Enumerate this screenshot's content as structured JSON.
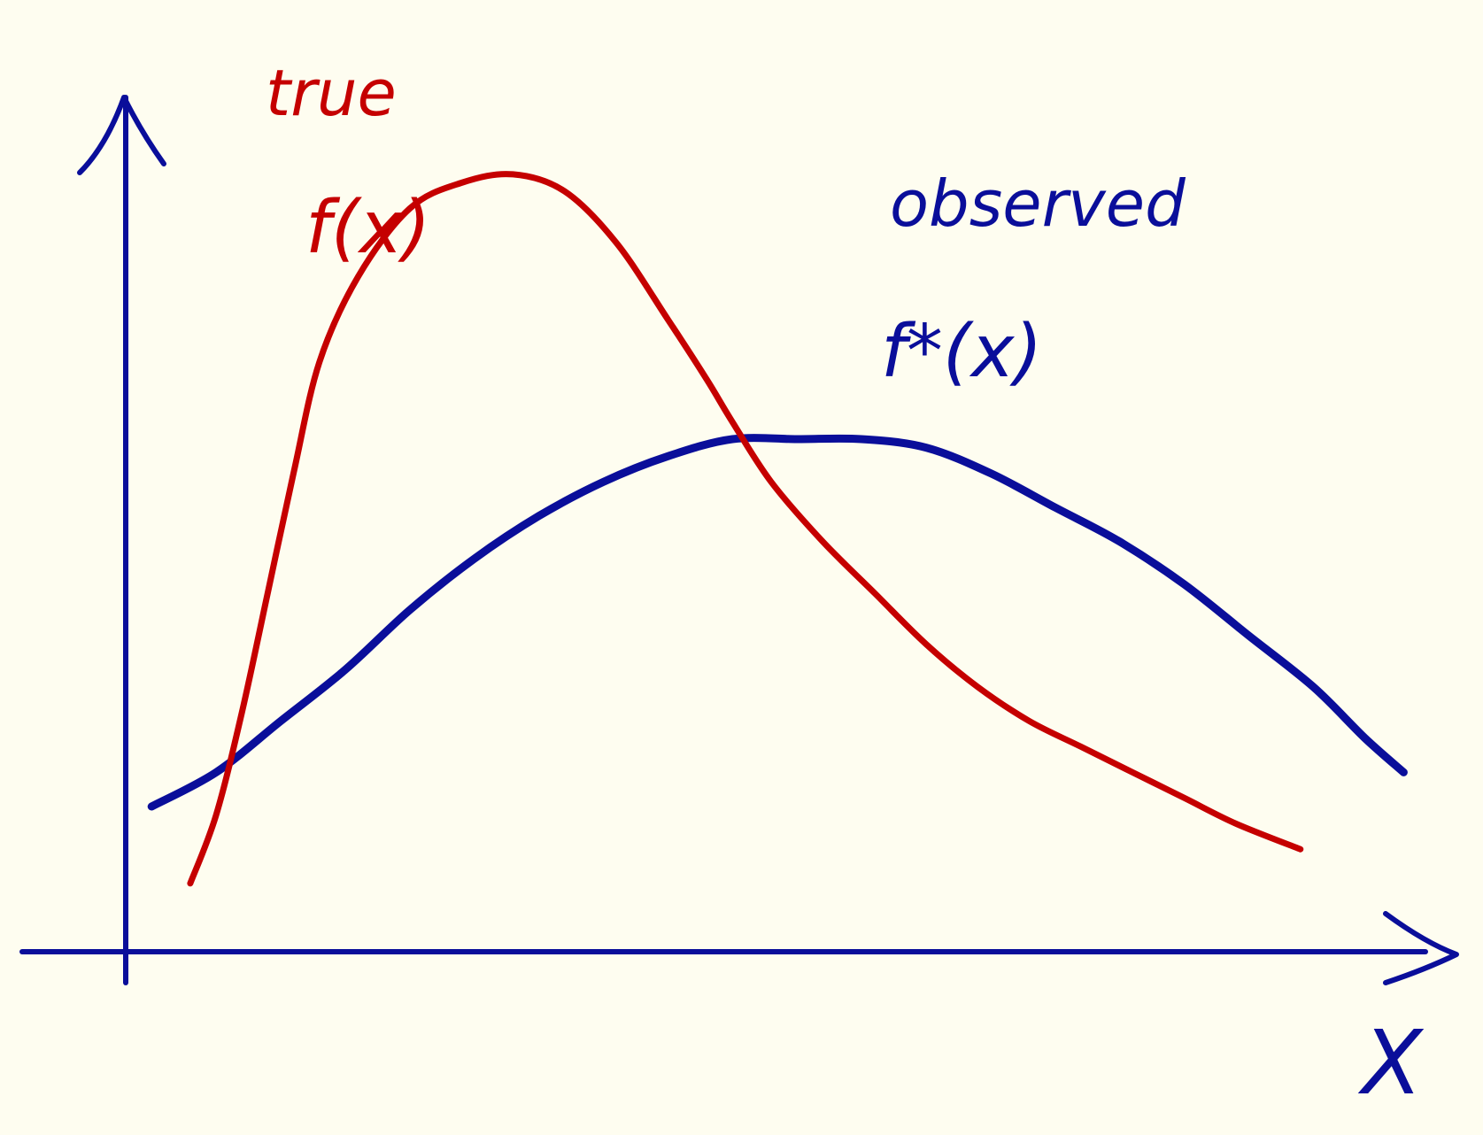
{
  "colors": {
    "background": "#fefdf0",
    "true_curve": "#c50000",
    "observed_curve": "#0a0e9a",
    "axes": "#0a0e9a"
  },
  "labels": {
    "true_word": "true",
    "true_func": "f(x)",
    "observed_word": "observed",
    "observed_func": "f*(x)",
    "x_axis": "X"
  },
  "chart_data": {
    "type": "line",
    "series": [
      {
        "name": "true f(x)",
        "color": "#c50000",
        "points": [
          [
            0.05,
            0.08
          ],
          [
            0.07,
            0.16
          ],
          [
            0.09,
            0.28
          ],
          [
            0.11,
            0.42
          ],
          [
            0.13,
            0.56
          ],
          [
            0.15,
            0.69
          ],
          [
            0.18,
            0.79
          ],
          [
            0.22,
            0.87
          ],
          [
            0.26,
            0.9
          ],
          [
            0.3,
            0.91
          ],
          [
            0.34,
            0.89
          ],
          [
            0.38,
            0.83
          ],
          [
            0.42,
            0.74
          ],
          [
            0.45,
            0.67
          ],
          [
            0.47,
            0.62
          ],
          [
            0.5,
            0.55
          ],
          [
            0.54,
            0.48
          ],
          [
            0.58,
            0.42
          ],
          [
            0.62,
            0.36
          ],
          [
            0.66,
            0.31
          ],
          [
            0.7,
            0.27
          ],
          [
            0.74,
            0.24
          ],
          [
            0.78,
            0.21
          ],
          [
            0.82,
            0.18
          ],
          [
            0.86,
            0.15
          ],
          [
            0.91,
            0.12
          ]
        ]
      },
      {
        "name": "observed f*(x)",
        "color": "#0a0e9a",
        "points": [
          [
            0.02,
            0.17
          ],
          [
            0.07,
            0.21
          ],
          [
            0.12,
            0.27
          ],
          [
            0.17,
            0.33
          ],
          [
            0.22,
            0.4
          ],
          [
            0.27,
            0.46
          ],
          [
            0.32,
            0.51
          ],
          [
            0.37,
            0.55
          ],
          [
            0.42,
            0.58
          ],
          [
            0.47,
            0.6
          ],
          [
            0.52,
            0.6
          ],
          [
            0.57,
            0.6
          ],
          [
            0.62,
            0.59
          ],
          [
            0.67,
            0.56
          ],
          [
            0.72,
            0.52
          ],
          [
            0.77,
            0.48
          ],
          [
            0.82,
            0.43
          ],
          [
            0.87,
            0.37
          ],
          [
            0.92,
            0.31
          ],
          [
            0.96,
            0.25
          ],
          [
            0.99,
            0.21
          ]
        ]
      }
    ],
    "xlim": [
      0,
      1
    ],
    "ylim": [
      0,
      1
    ],
    "xlabel": "X",
    "ylabel": "",
    "grid": false,
    "legend": "none"
  }
}
